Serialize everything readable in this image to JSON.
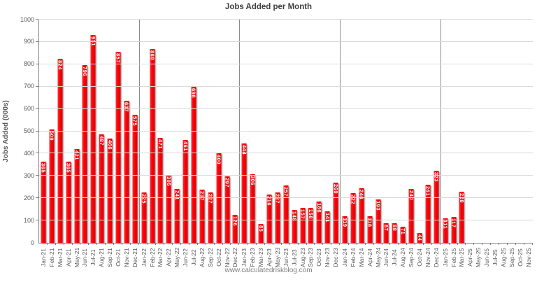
{
  "title": "Jobs Added per Month",
  "y_axis_title": "Jobs Added (000s)",
  "watermark": "www.calculatedriskblog.com",
  "chart_data": {
    "type": "bar",
    "title": "Jobs Added per Month",
    "xlabel": "",
    "ylabel": "Jobs Added (000s)",
    "ylim": [
      0,
      1000
    ],
    "yticks": [
      0,
      100,
      200,
      300,
      400,
      500,
      600,
      700,
      800,
      900,
      1000
    ],
    "grid": true,
    "bar_color": "#fb0007",
    "bar_label_color": "#ffffff",
    "year_separator_indices": [
      11,
      23,
      35,
      47
    ],
    "categories": [
      "Jan-21",
      "Feb-21",
      "Mar-21",
      "Apr-21",
      "May-21",
      "Jun-21",
      "Jul-21",
      "Aug-21",
      "Sep-21",
      "Oct-21",
      "Nov-21",
      "Dec-21",
      "Jan-22",
      "Feb-22",
      "Mar-22",
      "Apr-22",
      "May-22",
      "Jun-22",
      "Jul-22",
      "Aug-22",
      "Sep-22",
      "Oct-22",
      "Nov-22",
      "Dec-22",
      "Jan-23",
      "Feb-23",
      "Mar-23",
      "Apr-23",
      "May-23",
      "Jun-23",
      "Jul-23",
      "Aug-23",
      "Sep-23",
      "Oct-23",
      "Nov-23",
      "Dec-23",
      "Jan-24",
      "Feb-24",
      "Mar-24",
      "Apr-24",
      "May-24",
      "Jun-24",
      "Jul-24",
      "Aug-24",
      "Sep-24",
      "Oct-24",
      "Nov-24",
      "Dec-24",
      "Jan-25",
      "Feb-25",
      "Mar-25",
      "Apr-25",
      "May-25",
      "Jun-25",
      "Jul-25",
      "Aug-25",
      "Sep-25",
      "Oct-25",
      "Nov-25"
    ],
    "values": [
      365,
      509,
      824,
      365,
      421,
      796,
      931,
      487,
      466,
      857,
      637,
      575,
      225,
      869,
      471,
      305,
      241,
      461,
      698,
      237,
      227,
      400,
      297,
      126,
      444,
      306,
      85,
      216,
      227,
      257,
      148,
      157,
      158,
      186,
      141,
      269,
      119,
      222,
      246,
      118,
      193,
      87,
      88,
      71,
      240,
      44,
      261,
      323,
      111,
      117,
      228,
      null,
      null,
      null,
      null,
      null,
      null,
      null,
      null
    ]
  }
}
